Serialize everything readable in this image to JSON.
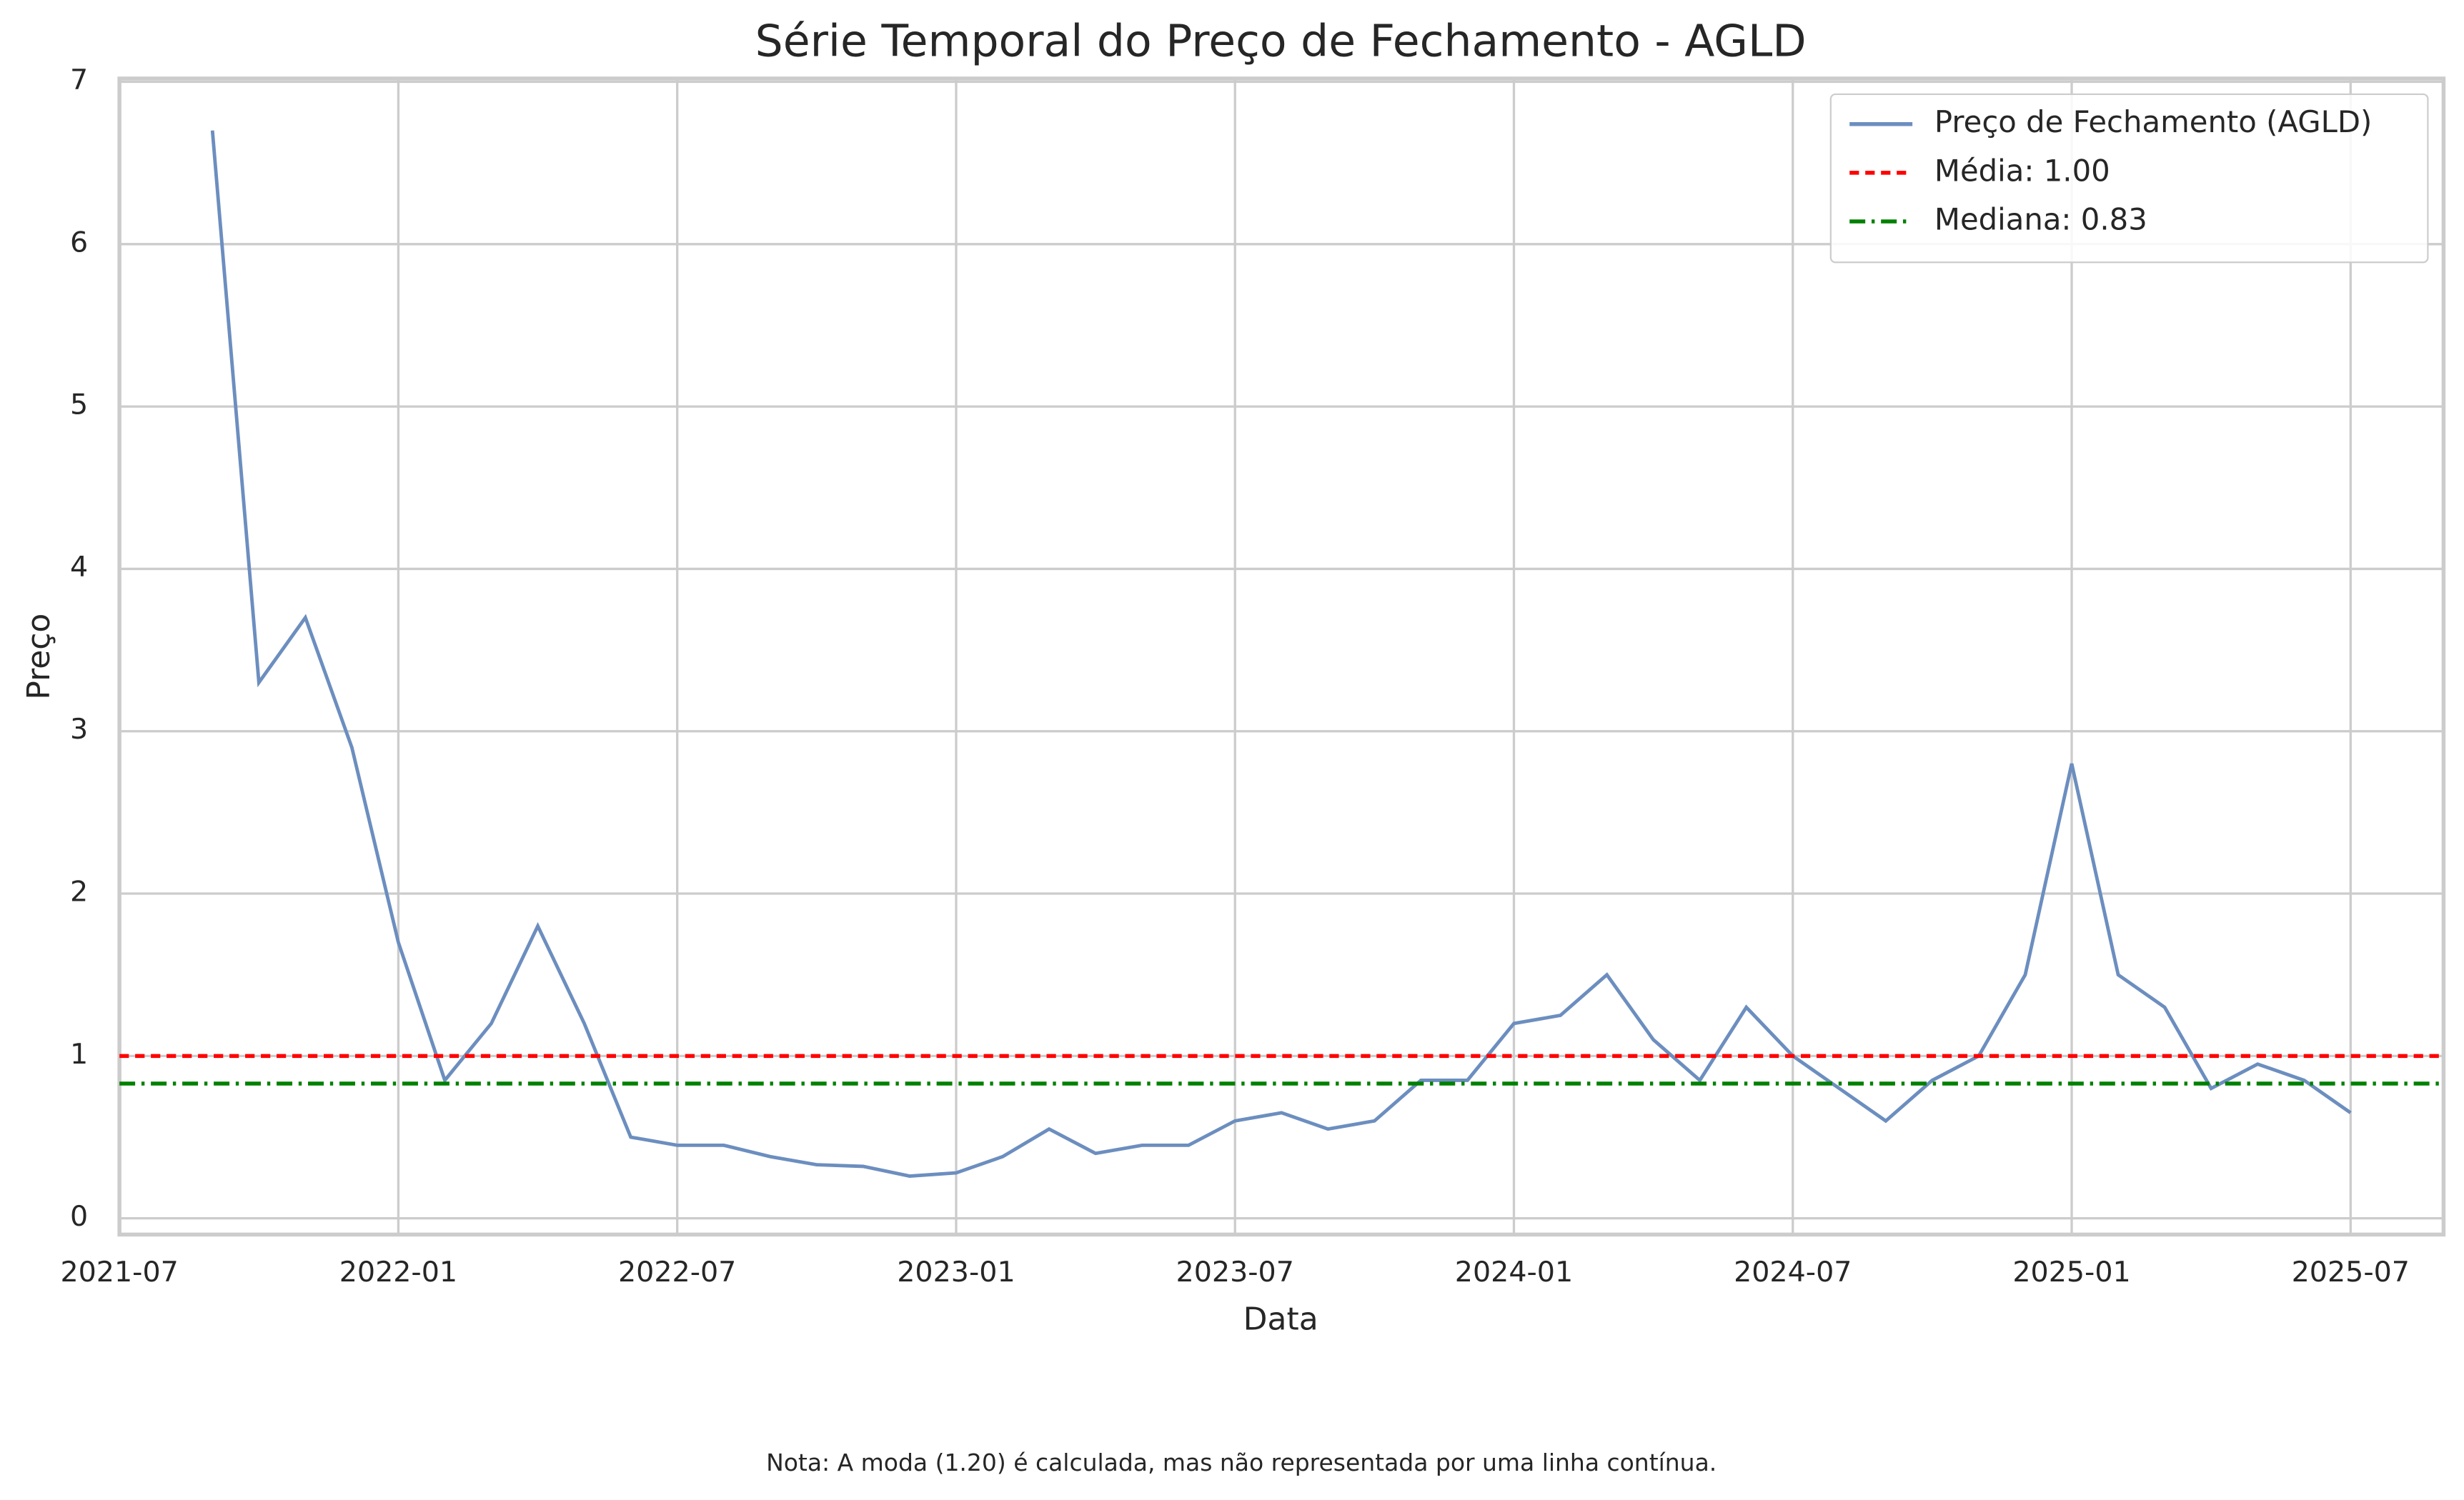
{
  "chart_data": {
    "type": "line",
    "title": "Série Temporal do Preço de Fechamento - AGLD",
    "x_label": "Data",
    "y_label": "Preço",
    "note": "Nota: A moda (1.20) é calculada, mas não representada por uma linha contínua.",
    "x": [
      "2021-09",
      "2021-10",
      "2021-11",
      "2021-12",
      "2022-01",
      "2022-02",
      "2022-03",
      "2022-04",
      "2022-05",
      "2022-06",
      "2022-07",
      "2022-08",
      "2022-09",
      "2022-10",
      "2022-11",
      "2022-12",
      "2023-01",
      "2023-02",
      "2023-03",
      "2023-04",
      "2023-05",
      "2023-06",
      "2023-07",
      "2023-08",
      "2023-09",
      "2023-10",
      "2023-11",
      "2023-12",
      "2024-01",
      "2024-02",
      "2024-03",
      "2024-04",
      "2024-05",
      "2024-06",
      "2024-07",
      "2024-08",
      "2024-09",
      "2024-10",
      "2024-11",
      "2024-12",
      "2025-01",
      "2025-02",
      "2025-03",
      "2025-04",
      "2025-05",
      "2025-06",
      "2025-07"
    ],
    "series": [
      {
        "name": "Preço de Fechamento (AGLD)",
        "color": "#6c8ebf",
        "values": [
          6.7,
          3.3,
          3.7,
          2.9,
          1.7,
          0.85,
          1.2,
          1.8,
          1.2,
          0.5,
          0.45,
          0.45,
          0.38,
          0.33,
          0.32,
          0.26,
          0.28,
          0.38,
          0.55,
          0.4,
          0.45,
          0.45,
          0.6,
          0.65,
          0.55,
          0.6,
          0.85,
          0.85,
          1.2,
          1.25,
          1.5,
          1.1,
          0.85,
          1.3,
          1.0,
          0.8,
          0.6,
          0.85,
          1.0,
          1.5,
          2.8,
          1.5,
          1.3,
          0.8,
          0.95,
          0.85,
          0.65
        ]
      }
    ],
    "hlines": [
      {
        "name": "Média: 1.00",
        "value": 1.0,
        "color": "#ff0000",
        "dash": "6,4"
      },
      {
        "name": "Mediana: 0.83",
        "value": 0.83,
        "color": "#008000",
        "dash": "10,4,2,4"
      }
    ],
    "xlim": [
      "2021-07",
      "2025-09"
    ],
    "xticks": [
      "2021-07",
      "2022-01",
      "2022-07",
      "2023-01",
      "2023-07",
      "2024-01",
      "2024-07",
      "2025-01",
      "2025-07"
    ],
    "ylim": [
      -0.1,
      7.02
    ],
    "yticks": [
      0,
      1,
      2,
      3,
      4,
      5,
      6,
      7
    ],
    "grid": true,
    "legend": "upper right"
  }
}
